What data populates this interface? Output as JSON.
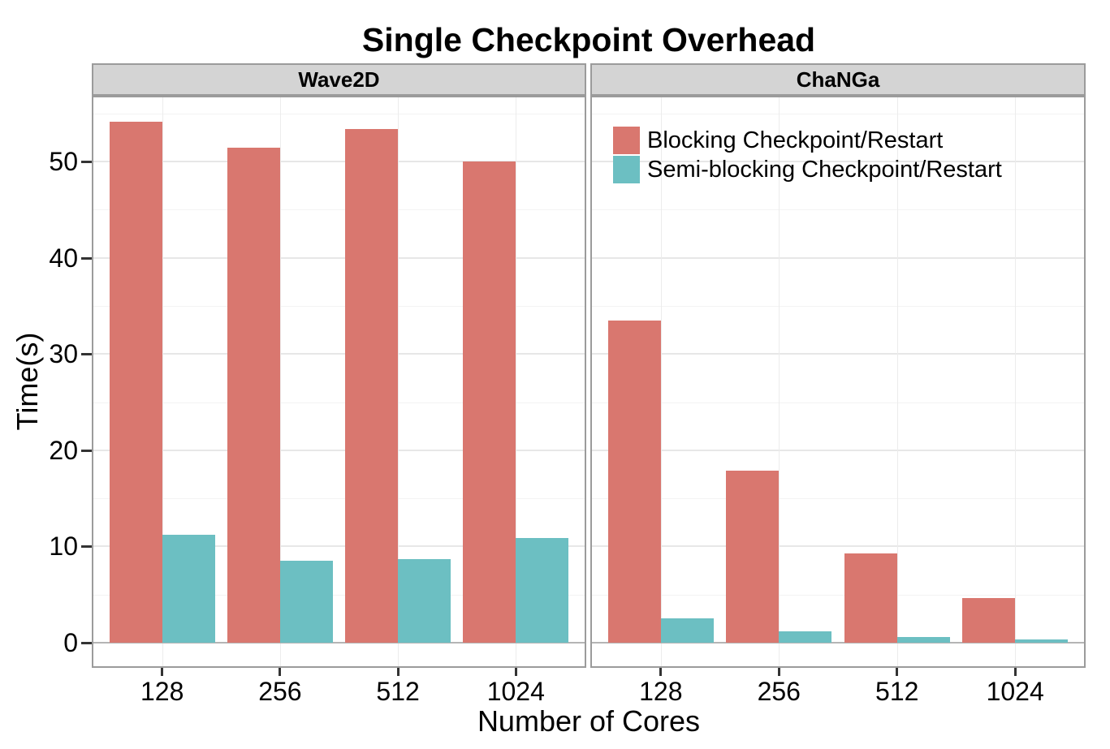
{
  "title": "Single Checkpoint Overhead",
  "axes": {
    "x_label": "Number of Cores",
    "y_label": "Time(s)",
    "y_ticks": [
      0,
      10,
      20,
      30,
      40,
      50
    ],
    "x_ticks": [
      "128",
      "256",
      "512",
      "1024"
    ]
  },
  "facets": [
    {
      "label": "Wave2D"
    },
    {
      "label": "ChaNGa"
    }
  ],
  "legend": {
    "items": [
      {
        "label": "Blocking Checkpoint/Restart",
        "color": "#D9776F"
      },
      {
        "label": "Semi-blocking Checkpoint/Restart",
        "color": "#6CBFC2"
      }
    ]
  },
  "chart_data": {
    "type": "bar",
    "title": "Single Checkpoint Overhead",
    "xlabel": "Number of Cores",
    "ylabel": "Time(s)",
    "ylim": [
      0,
      56.7
    ],
    "y_major_gridlines": [
      10,
      20,
      30,
      40,
      50
    ],
    "y_minor_gridlines": [
      5,
      15,
      25,
      35,
      45,
      55
    ],
    "grid": true,
    "legend_position": "inside top-left of ChaNGa panel",
    "categories": [
      "128",
      "256",
      "512",
      "1024"
    ],
    "facets": [
      {
        "name": "Wave2D",
        "series": [
          {
            "name": "Blocking Checkpoint/Restart",
            "color": "#D9776F",
            "values": [
              54.1,
              51.4,
              53.4,
              50.0
            ]
          },
          {
            "name": "Semi-blocking Checkpoint/Restart",
            "color": "#6CBFC2",
            "values": [
              11.2,
              8.5,
              8.7,
              10.9
            ]
          }
        ]
      },
      {
        "name": "ChaNGa",
        "series": [
          {
            "name": "Blocking Checkpoint/Restart",
            "color": "#D9776F",
            "values": [
              33.5,
              17.9,
              9.3,
              4.6
            ]
          },
          {
            "name": "Semi-blocking Checkpoint/Restart",
            "color": "#6CBFC2",
            "values": [
              2.5,
              1.2,
              0.6,
              0.3
            ]
          }
        ]
      }
    ]
  }
}
